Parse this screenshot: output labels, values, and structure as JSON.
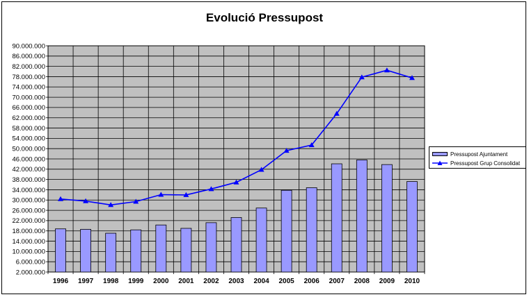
{
  "chart_data": {
    "type": "bar+line",
    "title": "Evolució Pressupost",
    "categories": [
      "1996",
      "1997",
      "1998",
      "1999",
      "2000",
      "2001",
      "2002",
      "2003",
      "2004",
      "2005",
      "2006",
      "2007",
      "2008",
      "2009",
      "2010"
    ],
    "series": [
      {
        "name": "Pressupost Ajuntament",
        "type": "bar",
        "color": "#9999ff",
        "values": [
          18800000,
          18600000,
          17100000,
          18400000,
          20300000,
          19000000,
          21200000,
          23200000,
          26900000,
          33800000,
          34800000,
          44100000,
          45600000,
          43800000,
          37200000
        ]
      },
      {
        "name": "Pressupost Grup Consolidat",
        "type": "line",
        "color": "#0000ff",
        "values": [
          30400000,
          29600000,
          28100000,
          29400000,
          32100000,
          32000000,
          34300000,
          36900000,
          41800000,
          49200000,
          51400000,
          63600000,
          77800000,
          80500000,
          77500000
        ]
      }
    ],
    "y_ticks": [
      "90.000.000",
      "86.000.000",
      "82.000.000",
      "78.000.000",
      "74.000.000",
      "70.000.000",
      "66.000.000",
      "62.000.000",
      "58.000.000",
      "54.000.000",
      "50.000.000",
      "46.000.000",
      "42.000.000",
      "38.000.000",
      "34.000.000",
      "30.000.000",
      "26.000.000",
      "22.000.000",
      "18.000.000",
      "14.000.000",
      "10.000.000",
      "6.000.000",
      "2.000.000"
    ],
    "ylim": [
      2000000,
      90000000
    ],
    "y_step": 4000000,
    "grid": true,
    "plot_background": "#c0c0c0",
    "legend_position": "right"
  }
}
